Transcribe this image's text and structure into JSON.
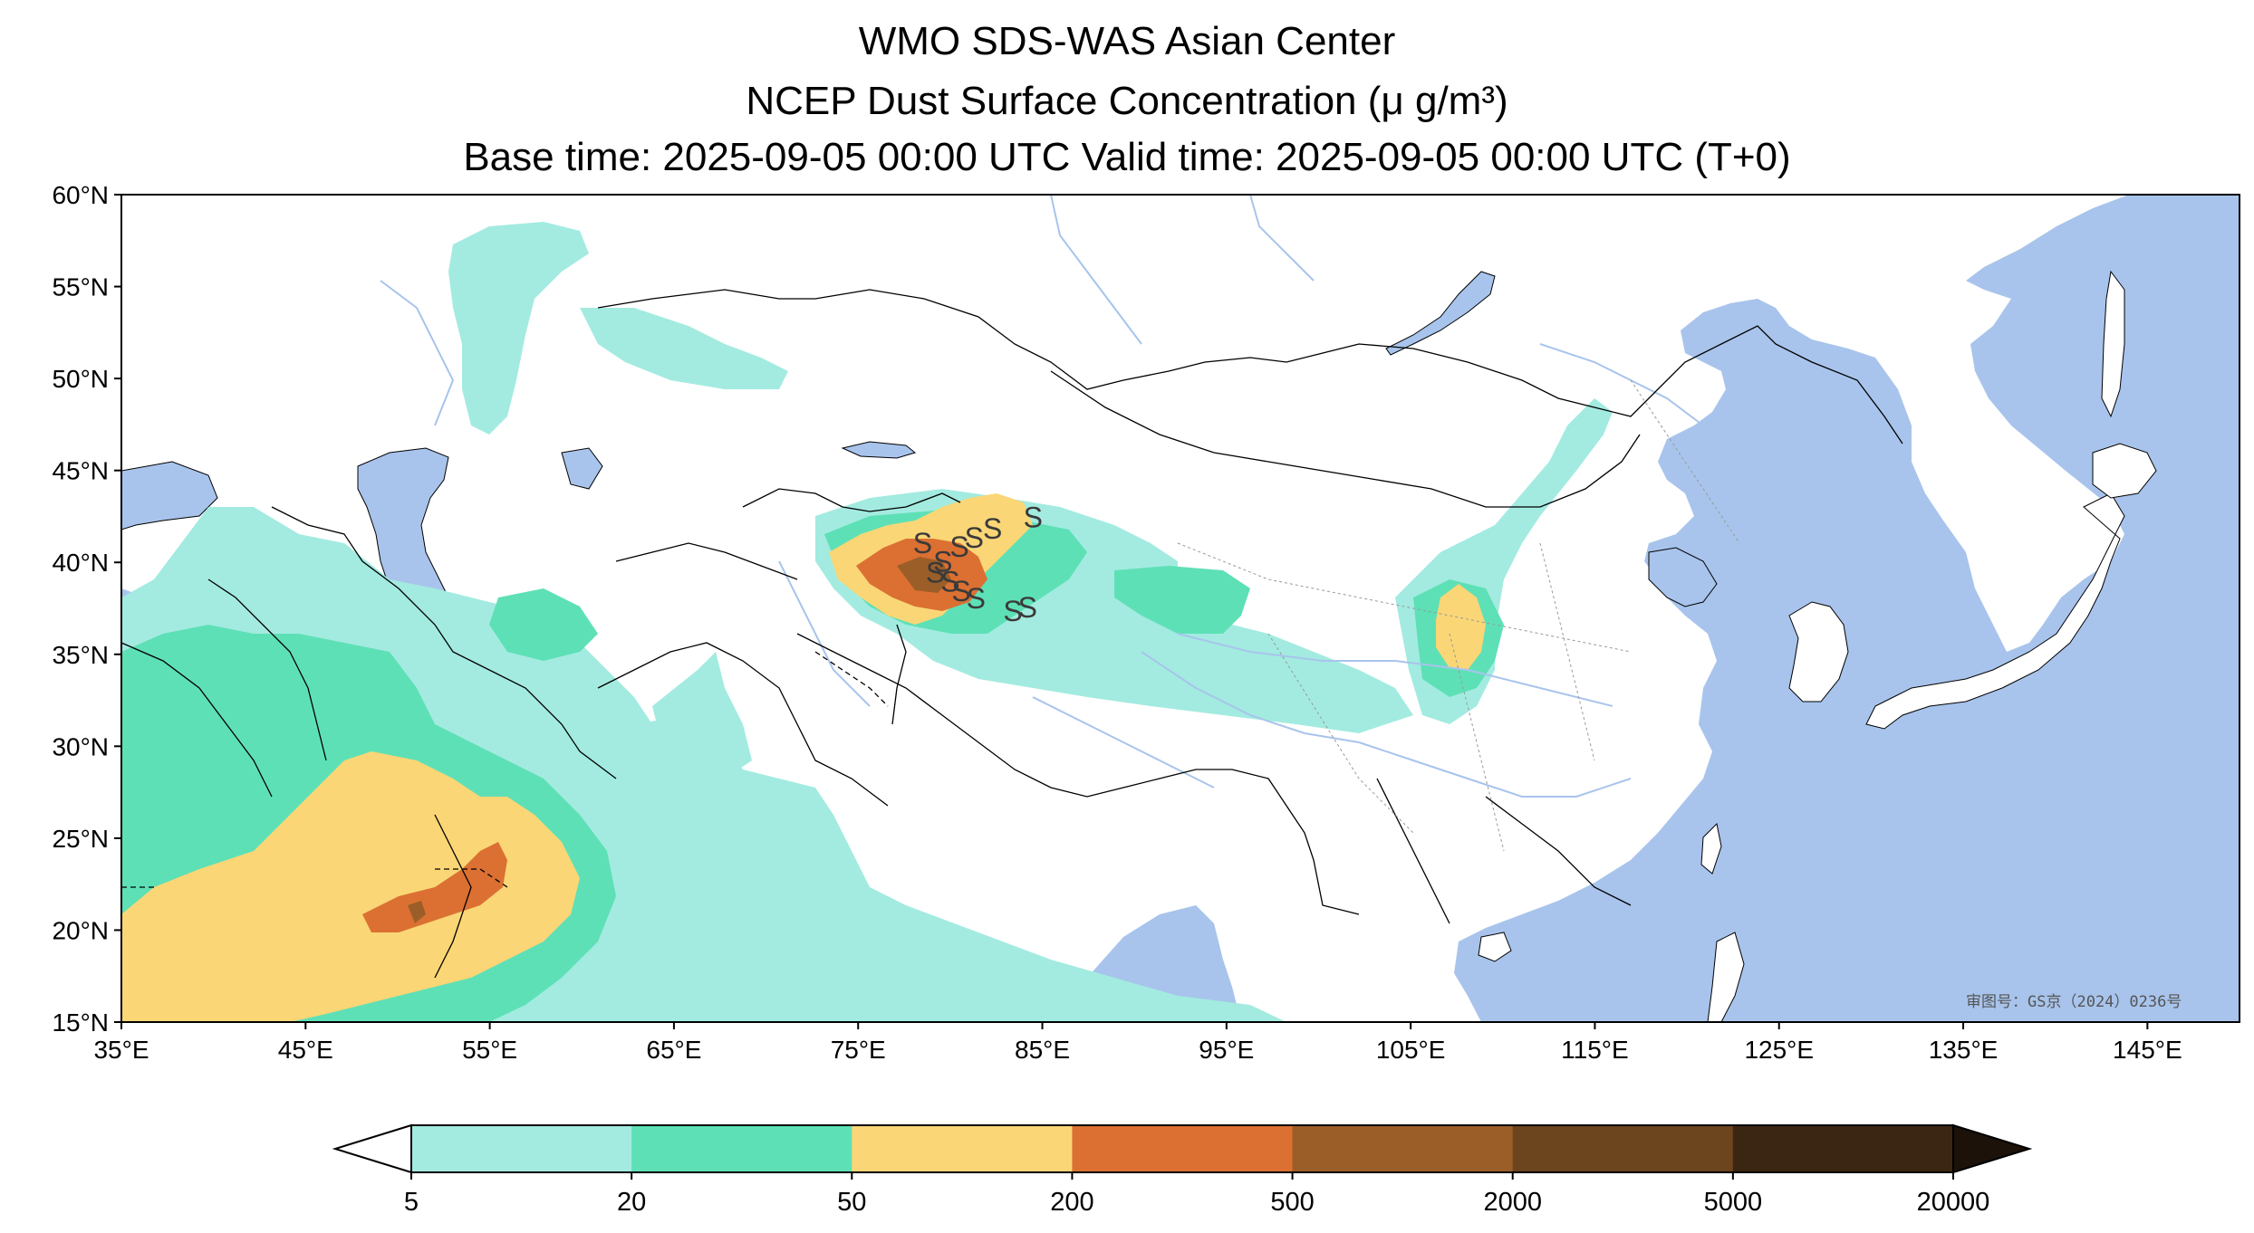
{
  "title": {
    "line1": "WMO SDS-WAS Asian Center",
    "line2": "NCEP Dust Surface Concentration (μ g/m³)",
    "line3": "Base time: 2025-09-05 00:00 UTC Valid time: 2025-09-05 00:00 UTC (T+0)"
  },
  "axes": {
    "lat_labels": [
      "60°N",
      "55°N",
      "50°N",
      "45°N",
      "40°N",
      "35°N",
      "30°N",
      "25°N",
      "20°N",
      "15°N"
    ],
    "lon_labels": [
      "35°E",
      "45°E",
      "55°E",
      "65°E",
      "75°E",
      "85°E",
      "95°E",
      "105°E",
      "115°E",
      "125°E",
      "135°E",
      "145°E"
    ],
    "lat_range": [
      15,
      60
    ],
    "lon_range": [
      35,
      150
    ]
  },
  "colorbar": {
    "levels": [
      "5",
      "20",
      "50",
      "200",
      "500",
      "2000",
      "5000",
      "20000"
    ],
    "colors": [
      "#a3ebe0",
      "#5ee0b6",
      "#fad676",
      "#db7032",
      "#9c5e28",
      "#6c441d",
      "#3b2613",
      "#1c120a"
    ],
    "extend": "both"
  },
  "map_colors": {
    "ocean": "#a8c4ec",
    "land": "#ffffff",
    "river": "#a8c4ec",
    "border": "#000000"
  },
  "dust_station_marker": "S",
  "stamp": "审图号：GS京（2024）0236号"
}
